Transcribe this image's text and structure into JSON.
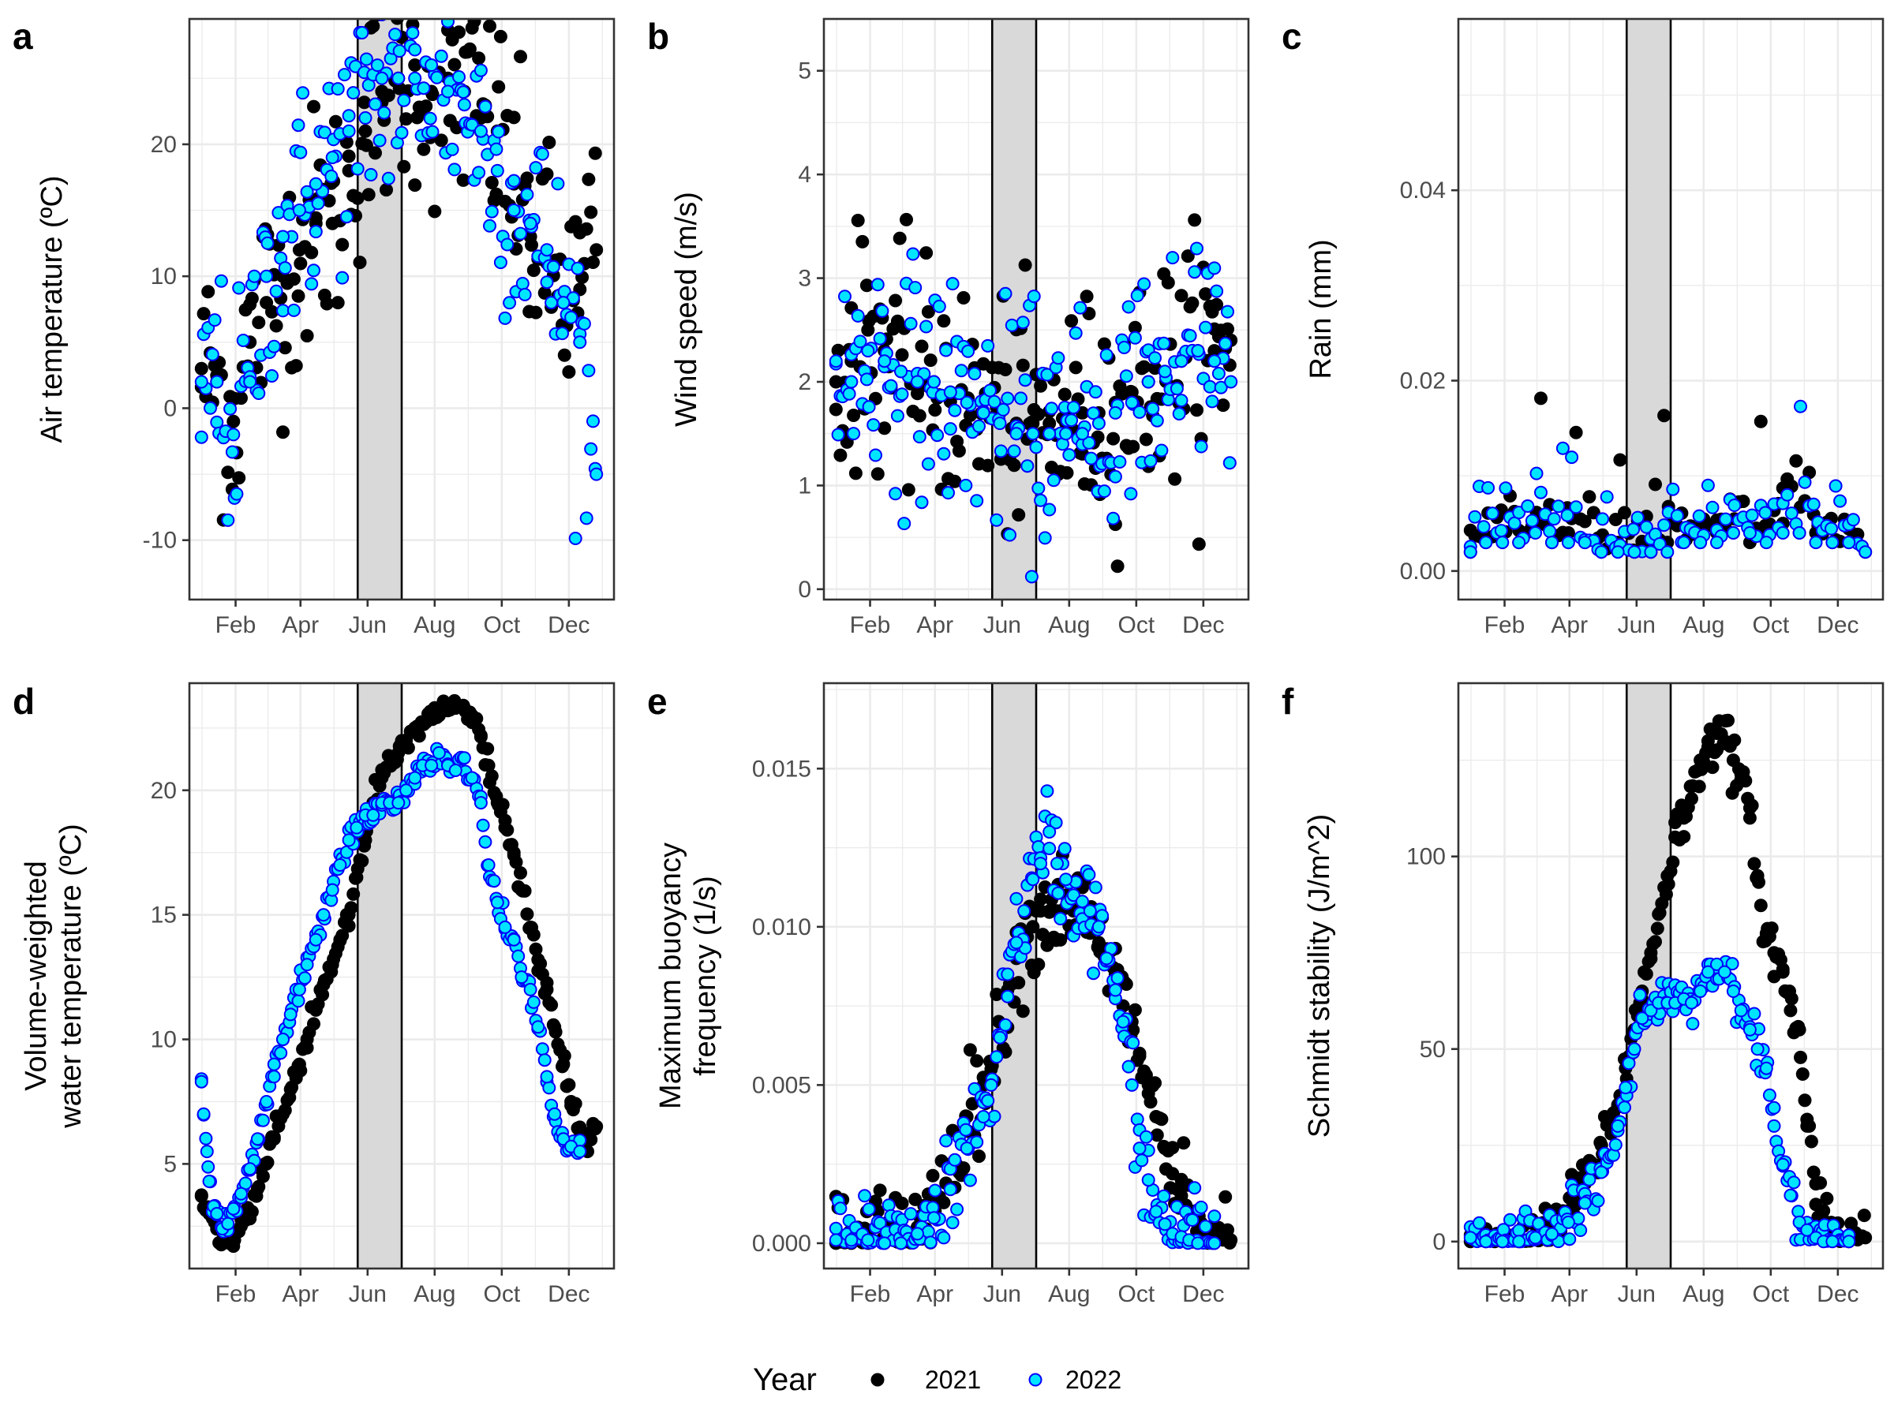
{
  "legend": {
    "title": "Year",
    "entries": [
      {
        "label": "2021",
        "fill": "#000000",
        "stroke": "#000000"
      },
      {
        "label": "2022",
        "fill": "#00e5ff",
        "stroke": "#0000ff"
      }
    ]
  },
  "colors": {
    "series_2021_fill": "#000000",
    "series_2022_fill": "#00e5ff",
    "series_2022_outline": "#0000ff",
    "shaded_period": "#d9d9d9",
    "panel_border": "#333333",
    "gridline": "#ebebeb"
  },
  "shared_x": {
    "type": "date (day of year)",
    "range": [
      1,
      365
    ],
    "tick_labels": [
      "Feb",
      "Apr",
      "Jun",
      "Aug",
      "Oct",
      "Dec"
    ],
    "tick_positions": [
      32,
      91,
      152,
      213,
      274,
      335
    ],
    "shaded_period": [
      143,
      183
    ]
  },
  "chart_data": [
    {
      "panel": "a",
      "type": "scatter",
      "ylabel": "Air temperature (ºC)",
      "ylim": [
        -14.5,
        29.5
      ],
      "yticks": [
        -10,
        0,
        10,
        20
      ],
      "ytick_labels": [
        "-10",
        "0",
        "10",
        "20"
      ],
      "grid": true,
      "series": [
        {
          "name": "2021",
          "x": [
            1,
            15,
            30,
            45,
            60,
            75,
            90,
            105,
            120,
            135,
            150,
            165,
            180,
            195,
            210,
            225,
            240,
            255,
            270,
            285,
            300,
            315,
            330,
            345,
            360
          ],
          "y": [
            3,
            2,
            -1,
            5,
            8,
            10,
            12,
            14,
            14,
            18,
            21,
            24,
            25,
            26,
            24,
            25,
            24,
            22,
            21,
            17,
            13,
            11,
            8,
            9,
            12
          ]
        },
        {
          "name": "2022",
          "x": [
            1,
            15,
            30,
            45,
            60,
            75,
            90,
            105,
            120,
            135,
            150,
            165,
            180,
            195,
            210,
            225,
            240,
            255,
            270,
            285,
            300,
            315,
            330,
            345,
            360
          ],
          "y": [
            2,
            2,
            -2,
            2,
            10,
            13,
            15,
            17,
            19,
            21,
            22,
            25,
            25,
            25,
            26,
            24,
            23,
            21,
            18,
            15,
            14,
            12,
            8,
            5,
            -5
          ]
        }
      ]
    },
    {
      "panel": "b",
      "type": "scatter",
      "ylabel": "Wind speed (m/s)",
      "ylim": [
        -0.1,
        5.5
      ],
      "yticks": [
        0,
        1,
        2,
        3,
        4,
        5
      ],
      "ytick_labels": [
        "0",
        "1",
        "2",
        "3",
        "4",
        "5"
      ],
      "grid": true,
      "series": [
        {
          "name": "2021",
          "x": [
            1,
            15,
            30,
            45,
            60,
            75,
            90,
            105,
            120,
            135,
            150,
            165,
            180,
            195,
            210,
            225,
            240,
            255,
            270,
            285,
            300,
            315,
            330,
            345,
            360
          ],
          "y": [
            2.0,
            2.2,
            2.5,
            2.3,
            2.1,
            2.0,
            2.0,
            1.9,
            1.8,
            1.7,
            1.7,
            1.6,
            1.6,
            1.6,
            1.6,
            1.7,
            1.7,
            1.8,
            1.9,
            2.0,
            2.1,
            2.2,
            2.3,
            2.3,
            2.4
          ]
        },
        {
          "name": "2022",
          "x": [
            1,
            15,
            30,
            45,
            60,
            75,
            90,
            105,
            120,
            135,
            150,
            165,
            180,
            195,
            210,
            225,
            240,
            255,
            270,
            285,
            300,
            315,
            330,
            345,
            360
          ],
          "y": [
            2.2,
            2.0,
            2.3,
            2.2,
            2.1,
            2.0,
            2.0,
            1.9,
            1.8,
            1.7,
            1.6,
            1.5,
            1.5,
            1.5,
            1.5,
            1.5,
            1.6,
            1.7,
            1.8,
            2.0,
            2.1,
            2.2,
            2.3,
            2.2,
            2.0
          ]
        }
      ]
    },
    {
      "panel": "c",
      "type": "scatter",
      "ylabel": "Rain (mm)",
      "ylim": [
        -0.003,
        0.058
      ],
      "yticks": [
        0.0,
        0.02,
        0.04
      ],
      "ytick_labels": [
        "0.00",
        "0.02",
        "0.04"
      ],
      "grid": true,
      "series": [
        {
          "name": "2021",
          "x": [
            1,
            15,
            30,
            45,
            60,
            75,
            90,
            105,
            120,
            135,
            150,
            165,
            180,
            195,
            210,
            225,
            240,
            255,
            270,
            285,
            300,
            315,
            330,
            345,
            360
          ],
          "y": [
            0.002,
            0.003,
            0.004,
            0.003,
            0.005,
            0.003,
            0.004,
            0.003,
            0.002,
            0.003,
            0.002,
            0.002,
            0.003,
            0.003,
            0.003,
            0.004,
            0.004,
            0.003,
            0.004,
            0.005,
            0.004,
            0.004,
            0.003,
            0.003,
            0.002
          ]
        },
        {
          "name": "2022",
          "x": [
            1,
            15,
            30,
            45,
            60,
            75,
            90,
            105,
            120,
            135,
            150,
            165,
            180,
            195,
            210,
            225,
            240,
            255,
            270,
            285,
            300,
            315,
            330,
            345,
            360
          ],
          "y": [
            0.002,
            0.003,
            0.003,
            0.003,
            0.004,
            0.003,
            0.003,
            0.003,
            0.002,
            0.002,
            0.002,
            0.002,
            0.002,
            0.003,
            0.003,
            0.003,
            0.004,
            0.004,
            0.003,
            0.004,
            0.004,
            0.003,
            0.003,
            0.003,
            0.002
          ]
        }
      ]
    },
    {
      "panel": "d",
      "type": "scatter",
      "ylabel": "Volume-weighted water temperature (ºC)",
      "ylabel_lines": [
        "Volume-weighted",
        "water temperature (ºC)"
      ],
      "ylim": [
        0.8,
        24.3
      ],
      "yticks": [
        5,
        10,
        15,
        20
      ],
      "ytick_labels": [
        "5",
        "10",
        "15",
        "20"
      ],
      "grid": true,
      "series": [
        {
          "name": "2021",
          "x": [
            1,
            8,
            15,
            22,
            30,
            37,
            45,
            52,
            60,
            67,
            75,
            82,
            90,
            97,
            105,
            112,
            120,
            127,
            135,
            142,
            150,
            157,
            165,
            172,
            180,
            187,
            195,
            202,
            210,
            217,
            225,
            232,
            240,
            247,
            255,
            262,
            270,
            277,
            285,
            292,
            300,
            307,
            315,
            322,
            330,
            337,
            345,
            352,
            360
          ],
          "y": [
            3.7,
            3.0,
            2.5,
            2.0,
            1.7,
            2.5,
            3.0,
            4.0,
            5.0,
            6.0,
            7.0,
            8.0,
            9.0,
            10.0,
            11.2,
            12.2,
            13.0,
            14.0,
            15.0,
            16.5,
            18.0,
            19.5,
            20.5,
            21.0,
            21.5,
            22.0,
            22.5,
            22.7,
            23.0,
            23.0,
            23.2,
            23.3,
            23.3,
            23.0,
            22.2,
            21.0,
            19.5,
            18.5,
            17.5,
            16.0,
            14.5,
            13.2,
            12.0,
            10.5,
            9.0,
            7.5,
            6.3,
            5.5,
            6.5
          ]
        },
        {
          "name": "2022",
          "x": [
            1,
            3,
            6,
            8,
            12,
            15,
            20,
            25,
            30,
            37,
            45,
            52,
            60,
            67,
            75,
            82,
            90,
            97,
            105,
            112,
            120,
            127,
            135,
            142,
            150,
            157,
            165,
            172,
            180,
            187,
            195,
            202,
            210,
            217,
            225,
            232,
            240,
            247,
            255,
            262,
            270,
            277,
            285,
            292,
            300,
            307,
            315,
            322,
            330,
            337,
            345
          ],
          "y": [
            8.3,
            7.0,
            5.5,
            4.3,
            3.3,
            3.0,
            2.4,
            2.6,
            3.2,
            3.8,
            4.8,
            6.0,
            7.5,
            9.0,
            10.0,
            11.0,
            12.0,
            13.0,
            14.0,
            15.0,
            16.0,
            17.0,
            18.0,
            18.5,
            19.0,
            19.0,
            19.5,
            19.5,
            19.5,
            20.0,
            20.5,
            21.0,
            21.0,
            21.5,
            21.0,
            20.8,
            21.3,
            20.5,
            19.5,
            17.0,
            15.5,
            14.5,
            14.0,
            12.5,
            12.0,
            10.5,
            8.5,
            7.0,
            6.0,
            5.7,
            5.5
          ]
        }
      ]
    },
    {
      "panel": "e",
      "type": "scatter",
      "ylabel": "Maximum buoyancy frequency (1/s)",
      "ylabel_lines": [
        "Maximum buoyancy",
        "frequency (1/s)"
      ],
      "ylim": [
        -0.0008,
        0.0177
      ],
      "yticks": [
        0.0,
        0.005,
        0.01,
        0.015
      ],
      "ytick_labels": [
        "0.000",
        "0.005",
        "0.010",
        "0.015"
      ],
      "grid": true,
      "series": [
        {
          "name": "2021",
          "x": [
            1,
            15,
            30,
            45,
            60,
            75,
            90,
            105,
            120,
            135,
            142,
            150,
            157,
            165,
            172,
            180,
            187,
            195,
            202,
            210,
            217,
            225,
            232,
            240,
            247,
            255,
            262,
            270,
            277,
            285,
            292,
            300,
            307,
            315,
            322,
            330,
            345,
            360
          ],
          "y": [
            0,
            0,
            0,
            0,
            0,
            0.0005,
            0.0015,
            0.0025,
            0.004,
            0.005,
            0.0055,
            0.0065,
            0.008,
            0.009,
            0.0095,
            0.01,
            0.0105,
            0.0105,
            0.0105,
            0.011,
            0.0105,
            0.0105,
            0.0098,
            0.0095,
            0.009,
            0.0085,
            0.0075,
            0.007,
            0.006,
            0.005,
            0.004,
            0.003,
            0.0022,
            0.0015,
            0.0008,
            0.0003,
            0,
            0.0001
          ]
        },
        {
          "name": "2022",
          "x": [
            1,
            15,
            30,
            45,
            60,
            75,
            90,
            105,
            120,
            135,
            142,
            150,
            157,
            165,
            172,
            180,
            187,
            195,
            202,
            210,
            217,
            225,
            232,
            240,
            247,
            255,
            262,
            270,
            277,
            285,
            292,
            300,
            307,
            315,
            322,
            330,
            345
          ],
          "y": [
            0.0001,
            0.0001,
            0.0001,
            0,
            0,
            0.0003,
            0.0008,
            0.0017,
            0.003,
            0.004,
            0.005,
            0.0065,
            0.0085,
            0.0095,
            0.0105,
            0.0115,
            0.012,
            0.013,
            0.012,
            0.0115,
            0.011,
            0.0108,
            0.0105,
            0.01,
            0.009,
            0.008,
            0.007,
            0.005,
            0.003,
            0.002,
            0.001,
            0.0006,
            0.0003,
            0.0002,
            0.0001,
            0,
            0
          ]
        }
      ]
    },
    {
      "panel": "f",
      "type": "scatter",
      "ylabel": "Schmidt stability (J/m^2)",
      "ylim": [
        -7,
        145
      ],
      "yticks": [
        0,
        50,
        100
      ],
      "ytick_labels": [
        "0",
        "50",
        "100"
      ],
      "grid": true,
      "series": [
        {
          "name": "2021",
          "x": [
            1,
            15,
            30,
            45,
            60,
            75,
            90,
            105,
            120,
            135,
            142,
            150,
            157,
            165,
            172,
            180,
            187,
            195,
            202,
            210,
            217,
            225,
            232,
            240,
            247,
            255,
            262,
            270,
            277,
            285,
            292,
            300,
            307,
            315,
            322,
            330,
            345,
            360
          ],
          "y": [
            0,
            0,
            0,
            0,
            1,
            3,
            8,
            15,
            25,
            35,
            45,
            55,
            65,
            75,
            85,
            95,
            105,
            110,
            115,
            125,
            130,
            132,
            130,
            125,
            120,
            110,
            95,
            80,
            75,
            70,
            60,
            55,
            30,
            15,
            8,
            3,
            0,
            1
          ]
        },
        {
          "name": "2022",
          "x": [
            1,
            15,
            30,
            45,
            60,
            75,
            90,
            105,
            120,
            135,
            142,
            150,
            157,
            165,
            172,
            180,
            187,
            195,
            202,
            210,
            217,
            225,
            232,
            240,
            247,
            255,
            262,
            270,
            277,
            285,
            292,
            300,
            307,
            315,
            322,
            330,
            345
          ],
          "y": [
            1,
            0,
            0,
            0,
            1,
            2,
            5,
            10,
            18,
            30,
            40,
            50,
            58,
            60,
            62,
            62,
            62,
            63,
            62,
            65,
            70,
            72,
            70,
            65,
            60,
            55,
            50,
            45,
            30,
            20,
            12,
            5,
            3,
            1,
            0,
            0,
            0
          ]
        }
      ]
    }
  ]
}
